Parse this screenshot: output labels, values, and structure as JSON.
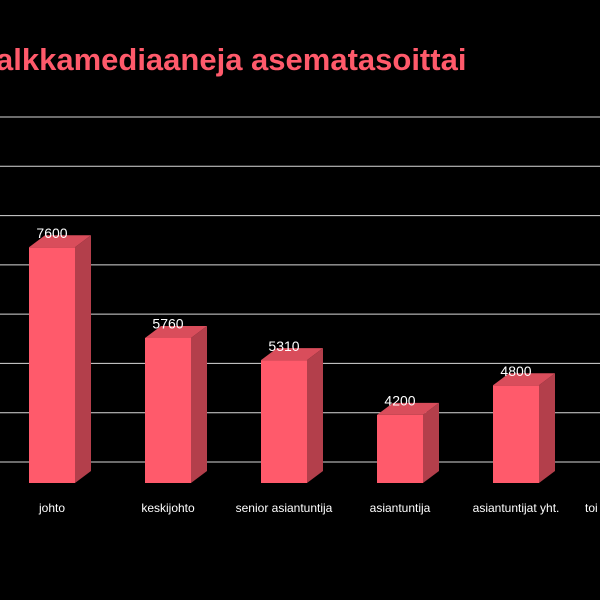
{
  "chart_data": {
    "type": "bar3d",
    "title": "alkkamediaaneja asematasoittai",
    "categories": [
      "johto",
      "keskijohto",
      "senior asiantuntija",
      "asiantuntija",
      "asiantuntijat yht.",
      "toi"
    ],
    "values": [
      7600,
      5760,
      5310,
      4200,
      4800,
      null
    ],
    "color": "#ff5a6b",
    "ylim": [
      3000,
      10000
    ],
    "yticks": [
      3000,
      4000,
      5000,
      6000,
      7000,
      8000,
      9000,
      10000
    ],
    "grid": true
  }
}
